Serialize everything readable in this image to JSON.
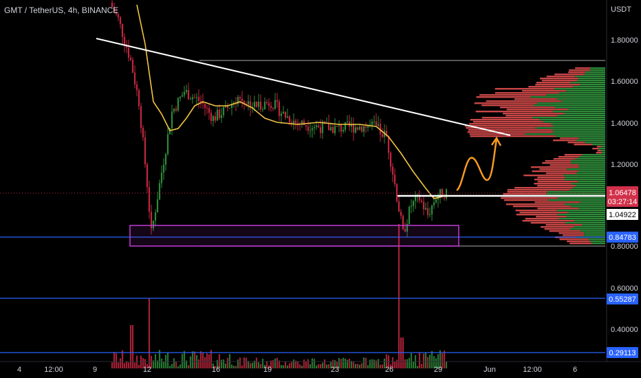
{
  "header": {
    "title": "GMT / TetherUS, 4h, BINANCE"
  },
  "axis": {
    "currency": "USDT",
    "price_ticks": [
      "1.80000",
      "1.60000",
      "1.40000",
      "1.20000",
      "0.80000"
    ],
    "volume_ticks": [
      "0.60000",
      "0.40000"
    ],
    "x_ticks": [
      "4",
      "12:00",
      "9",
      "12",
      "16",
      "19",
      "23",
      "26",
      "29",
      "Jun",
      "12:00",
      "6"
    ]
  },
  "price_tags": {
    "last": "1.06478",
    "countdown": "03:27:14",
    "line": "1.04922",
    "support": "0.84783",
    "vol_upper": "0.55287",
    "vol_lower": "0.29113"
  },
  "colors": {
    "up": "#2e8b3a",
    "down": "#c2273f",
    "ma": "#f5c542",
    "trendline": "#ffffff",
    "box": "#c03ad6",
    "hline": "#2962ff",
    "projection": "#f59a23",
    "vp_up": "#2e8b3a",
    "vp_down": "#c94747"
  },
  "chart_data": {
    "type": "candlestick",
    "symbol": "GMT / TetherUS",
    "interval": "4h",
    "exchange": "BINANCE",
    "y_range": [
      0.78,
      1.97
    ],
    "horizontal_lines": [
      0.84783,
      0.55287,
      0.29113
    ],
    "price_path": [
      [
        0,
        1.98
      ],
      [
        4,
        1.9
      ],
      [
        10,
        1.7
      ],
      [
        14,
        1.5
      ],
      [
        18,
        1.1
      ],
      [
        20,
        0.86
      ],
      [
        24,
        1.1
      ],
      [
        30,
        1.45
      ],
      [
        36,
        1.55
      ],
      [
        44,
        1.5
      ],
      [
        50,
        1.42
      ],
      [
        56,
        1.46
      ],
      [
        62,
        1.52
      ],
      [
        70,
        1.48
      ],
      [
        78,
        1.5
      ],
      [
        84,
        1.44
      ],
      [
        90,
        1.4
      ],
      [
        100,
        1.38
      ],
      [
        110,
        1.37
      ],
      [
        120,
        1.38
      ],
      [
        128,
        1.38
      ],
      [
        134,
        1.33
      ],
      [
        138,
        1.1
      ],
      [
        142,
        0.86
      ],
      [
        146,
        1.0
      ],
      [
        150,
        1.03
      ],
      [
        154,
        0.95
      ],
      [
        158,
        1.04
      ],
      [
        162,
        1.06
      ]
    ],
    "moving_average": [
      [
        12,
        1.97
      ],
      [
        16,
        1.78
      ],
      [
        20,
        1.5
      ],
      [
        24,
        1.44
      ],
      [
        28,
        1.36
      ],
      [
        32,
        1.37
      ],
      [
        36,
        1.42
      ],
      [
        40,
        1.48
      ],
      [
        44,
        1.5
      ],
      [
        50,
        1.48
      ],
      [
        56,
        1.48
      ],
      [
        62,
        1.5
      ],
      [
        68,
        1.47
      ],
      [
        74,
        1.42
      ],
      [
        80,
        1.4
      ],
      [
        90,
        1.39
      ],
      [
        100,
        1.4
      ],
      [
        110,
        1.39
      ],
      [
        120,
        1.39
      ],
      [
        128,
        1.38
      ],
      [
        134,
        1.33
      ],
      [
        140,
        1.25
      ],
      [
        146,
        1.16
      ],
      [
        152,
        1.08
      ],
      [
        156,
        1.03
      ],
      [
        160,
        1.04
      ]
    ],
    "trendline": [
      [
        0,
        1.78
      ],
      [
        170,
        1.33
      ]
    ],
    "range_box": {
      "x": [
        12,
        158
      ],
      "price": [
        0.8,
        0.89
      ]
    },
    "range_lines": [
      1.7,
      0.8
    ],
    "projection": [
      [
        161,
        1.1
      ],
      [
        165,
        1.22
      ],
      [
        168,
        1.1
      ],
      [
        172,
        1.33
      ]
    ]
  }
}
